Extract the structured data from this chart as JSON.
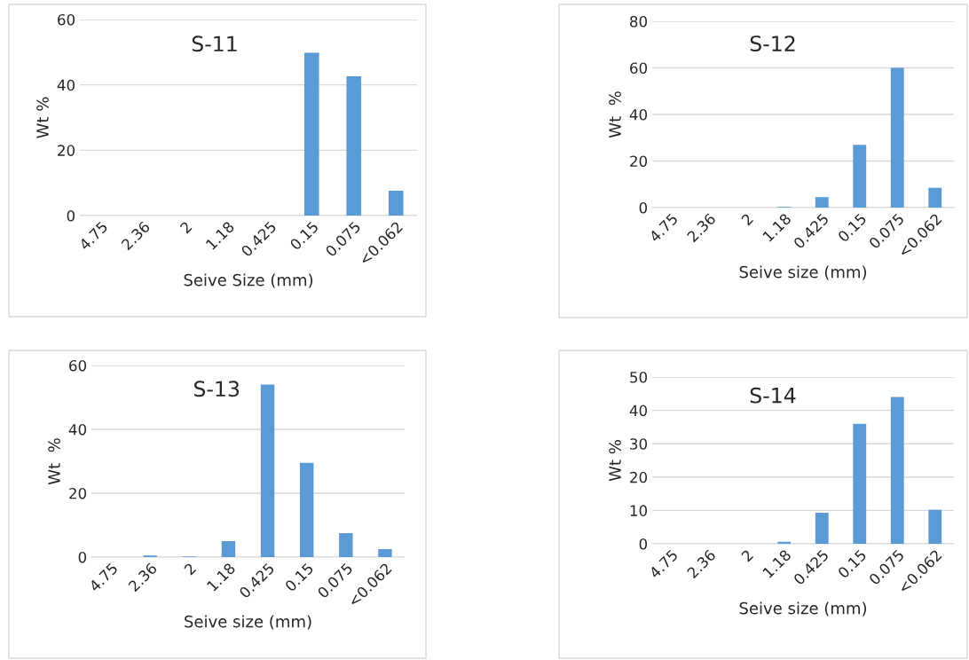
{
  "chart_data": [
    {
      "type": "bar",
      "title": "S-11",
      "xlabel": "Seive Size (mm)",
      "ylabel": "Wt %",
      "categories": [
        "4.75",
        "2.36",
        "2",
        "1.18",
        "0.425",
        "0.15",
        "0.075",
        "<0.062"
      ],
      "values": [
        0,
        0,
        0,
        0,
        0,
        49.8,
        42.6,
        7.6
      ],
      "color": "#5b9bd5",
      "ylim": [
        0,
        60
      ],
      "yticks": [
        0,
        20,
        40,
        60
      ],
      "grid": "y"
    },
    {
      "type": "bar",
      "title": "S-12",
      "xlabel": "Seive size (mm)",
      "ylabel": "Wt  %",
      "categories": [
        "4.75",
        "2.36",
        "2",
        "1.18",
        "0.425",
        "0.15",
        "0.075",
        "<0.062"
      ],
      "values": [
        0,
        0,
        0,
        0.3,
        4.5,
        27,
        60,
        8.5
      ],
      "color": "#5b9bd5",
      "ylim": [
        0,
        80
      ],
      "yticks": [
        0,
        20,
        40,
        60,
        80
      ],
      "grid": "y"
    },
    {
      "type": "bar",
      "title": "S-13",
      "xlabel": "Seive size (mm)",
      "ylabel": "Wt  %",
      "categories": [
        "4.75",
        "2.36",
        "2",
        "1.18",
        "0.425",
        "0.15",
        "0.075",
        "<0.062"
      ],
      "values": [
        0,
        0.5,
        0.2,
        5,
        54,
        29.5,
        7.5,
        2.5
      ],
      "color": "#5b9bd5",
      "ylim": [
        0,
        60
      ],
      "yticks": [
        0,
        20,
        40,
        60
      ],
      "grid": "y"
    },
    {
      "type": "bar",
      "title": "S-14",
      "xlabel": "Seive size (mm)",
      "ylabel": "Wt %",
      "categories": [
        "4.75",
        "2.36",
        "2",
        "1.18",
        "0.425",
        "0.15",
        "0.075",
        "<0.062"
      ],
      "values": [
        0,
        0,
        0,
        0.6,
        9.3,
        36,
        44,
        10.2
      ],
      "color": "#5b9bd5",
      "ylim": [
        0,
        50
      ],
      "yticks": [
        0,
        10,
        20,
        30,
        40,
        50
      ],
      "grid": "y"
    }
  ]
}
